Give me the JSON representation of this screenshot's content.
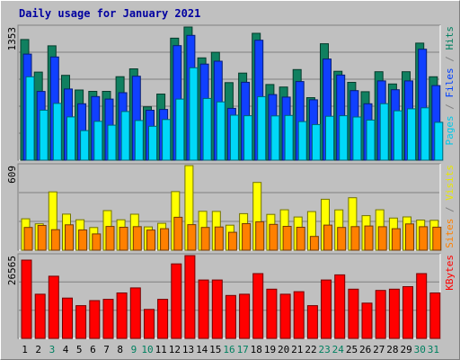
{
  "title": "Daily usage for January 2021",
  "panels": {
    "top": {
      "tick": "1353",
      "labels": [
        {
          "text": "Pages",
          "color": "#00c8e8"
        },
        {
          "text": " / ",
          "color": "#808080"
        },
        {
          "text": "Files",
          "color": "#0040ff"
        },
        {
          "text": " / ",
          "color": "#808080"
        },
        {
          "text": "Hits",
          "color": "#008060"
        }
      ]
    },
    "middle": {
      "tick": "609",
      "labels": [
        {
          "text": "Sites",
          "color": "#ff8000"
        },
        {
          "text": " / ",
          "color": "#808080"
        },
        {
          "text": "Visits",
          "color": "#e8e800"
        }
      ]
    },
    "bottom": {
      "tick": "26565",
      "labels": [
        {
          "text": "KBytes",
          "color": "#ff0000"
        }
      ]
    }
  },
  "days": [
    {
      "label": "1",
      "color": "#000000"
    },
    {
      "label": "2",
      "color": "#000000"
    },
    {
      "label": "3",
      "color": "#008060"
    },
    {
      "label": "4",
      "color": "#000000"
    },
    {
      "label": "5",
      "color": "#000000"
    },
    {
      "label": "6",
      "color": "#000000"
    },
    {
      "label": "7",
      "color": "#000000"
    },
    {
      "label": "8",
      "color": "#000000"
    },
    {
      "label": "9",
      "color": "#008060"
    },
    {
      "label": "10",
      "color": "#008060"
    },
    {
      "label": "11",
      "color": "#000000"
    },
    {
      "label": "12",
      "color": "#000000"
    },
    {
      "label": "13",
      "color": "#000000"
    },
    {
      "label": "14",
      "color": "#000000"
    },
    {
      "label": "15",
      "color": "#000000"
    },
    {
      "label": "16",
      "color": "#008060"
    },
    {
      "label": "17",
      "color": "#008060"
    },
    {
      "label": "18",
      "color": "#000000"
    },
    {
      "label": "19",
      "color": "#000000"
    },
    {
      "label": "20",
      "color": "#000000"
    },
    {
      "label": "21",
      "color": "#000000"
    },
    {
      "label": "22",
      "color": "#000000"
    },
    {
      "label": "23",
      "color": "#008060"
    },
    {
      "label": "24",
      "color": "#008060"
    },
    {
      "label": "25",
      "color": "#000000"
    },
    {
      "label": "26",
      "color": "#000000"
    },
    {
      "label": "27",
      "color": "#000000"
    },
    {
      "label": "28",
      "color": "#000000"
    },
    {
      "label": "29",
      "color": "#000000"
    },
    {
      "label": "30",
      "color": "#008060"
    },
    {
      "label": "31",
      "color": "#008060"
    }
  ],
  "chart_data": [
    {
      "type": "bar",
      "title": "Daily usage for January 2021",
      "ylim": [
        0,
        1353
      ],
      "grid": true,
      "categories": [
        "1",
        "2",
        "3",
        "4",
        "5",
        "6",
        "7",
        "8",
        "9",
        "10",
        "11",
        "12",
        "13",
        "14",
        "15",
        "16",
        "17",
        "18",
        "19",
        "20",
        "21",
        "22",
        "23",
        "24",
        "25",
        "26",
        "27",
        "28",
        "29",
        "30",
        "31"
      ],
      "series": [
        {
          "name": "Hits",
          "color": "#108060",
          "values": [
            1226,
            895,
            1162,
            862,
            713,
            699,
            699,
            848,
            928,
            542,
            672,
            1240,
            1353,
            1039,
            1096,
            788,
            885,
            1289,
            769,
            743,
            921,
            635,
            1183,
            903,
            791,
            696,
            899,
            774,
            899,
            1189,
            847
          ]
        },
        {
          "name": "Files",
          "color": "#1040ff",
          "values": [
            1078,
            698,
            1049,
            723,
            573,
            646,
            621,
            686,
            853,
            507,
            516,
            1164,
            1268,
            976,
            1006,
            527,
            792,
            1219,
            666,
            641,
            799,
            613,
            1028,
            865,
            707,
            573,
            805,
            716,
            805,
            1127,
            758
          ]
        },
        {
          "name": "Pages",
          "color": "#00d8f8",
          "values": [
            847,
            508,
            577,
            440,
            301,
            395,
            356,
            495,
            403,
            345,
            413,
            621,
            939,
            627,
            592,
            457,
            452,
            645,
            450,
            454,
            392,
            362,
            446,
            452,
            439,
            408,
            574,
            502,
            522,
            532,
            385
          ]
        }
      ]
    },
    {
      "type": "bar",
      "ylim": [
        0,
        609
      ],
      "grid": true,
      "categories": [
        "1",
        "2",
        "3",
        "4",
        "5",
        "6",
        "7",
        "8",
        "9",
        "10",
        "11",
        "12",
        "13",
        "14",
        "15",
        "16",
        "17",
        "18",
        "19",
        "20",
        "21",
        "22",
        "23",
        "24",
        "25",
        "26",
        "27",
        "28",
        "29",
        "30",
        "31"
      ],
      "series": [
        {
          "name": "Visits",
          "color": "#ffff00",
          "values": [
            226,
            190,
            420,
            260,
            219,
            163,
            285,
            219,
            259,
            168,
            194,
            422,
            609,
            280,
            279,
            180,
            263,
            488,
            258,
            291,
            239,
            278,
            367,
            290,
            378,
            249,
            291,
            231,
            240,
            217,
            215
          ]
        },
        {
          "name": "Sites",
          "color": "#ff8000",
          "values": [
            164,
            178,
            148,
            183,
            146,
            117,
            171,
            165,
            170,
            145,
            155,
            237,
            184,
            164,
            167,
            129,
            191,
            205,
            186,
            172,
            165,
            99,
            181,
            164,
            170,
            174,
            169,
            155,
            189,
            169,
            166
          ]
        }
      ]
    },
    {
      "type": "bar",
      "ylim": [
        0,
        26565
      ],
      "grid": true,
      "categories": [
        "1",
        "2",
        "3",
        "4",
        "5",
        "6",
        "7",
        "8",
        "9",
        "10",
        "11",
        "12",
        "13",
        "14",
        "15",
        "16",
        "17",
        "18",
        "19",
        "20",
        "21",
        "22",
        "23",
        "24",
        "25",
        "26",
        "27",
        "28",
        "29",
        "30",
        "31"
      ],
      "series": [
        {
          "name": "KBytes",
          "color": "#ff0000",
          "values": [
            25113,
            14174,
            19967,
            12950,
            10519,
            12140,
            12545,
            14579,
            16196,
            9310,
            12545,
            23899,
            26565,
            18752,
            18752,
            13759,
            14174,
            20784,
            15795,
            14174,
            14983,
            10519,
            18752,
            20378,
            15795,
            11322,
            15386,
            15795,
            16604,
            20784,
            14579
          ]
        }
      ]
    }
  ]
}
